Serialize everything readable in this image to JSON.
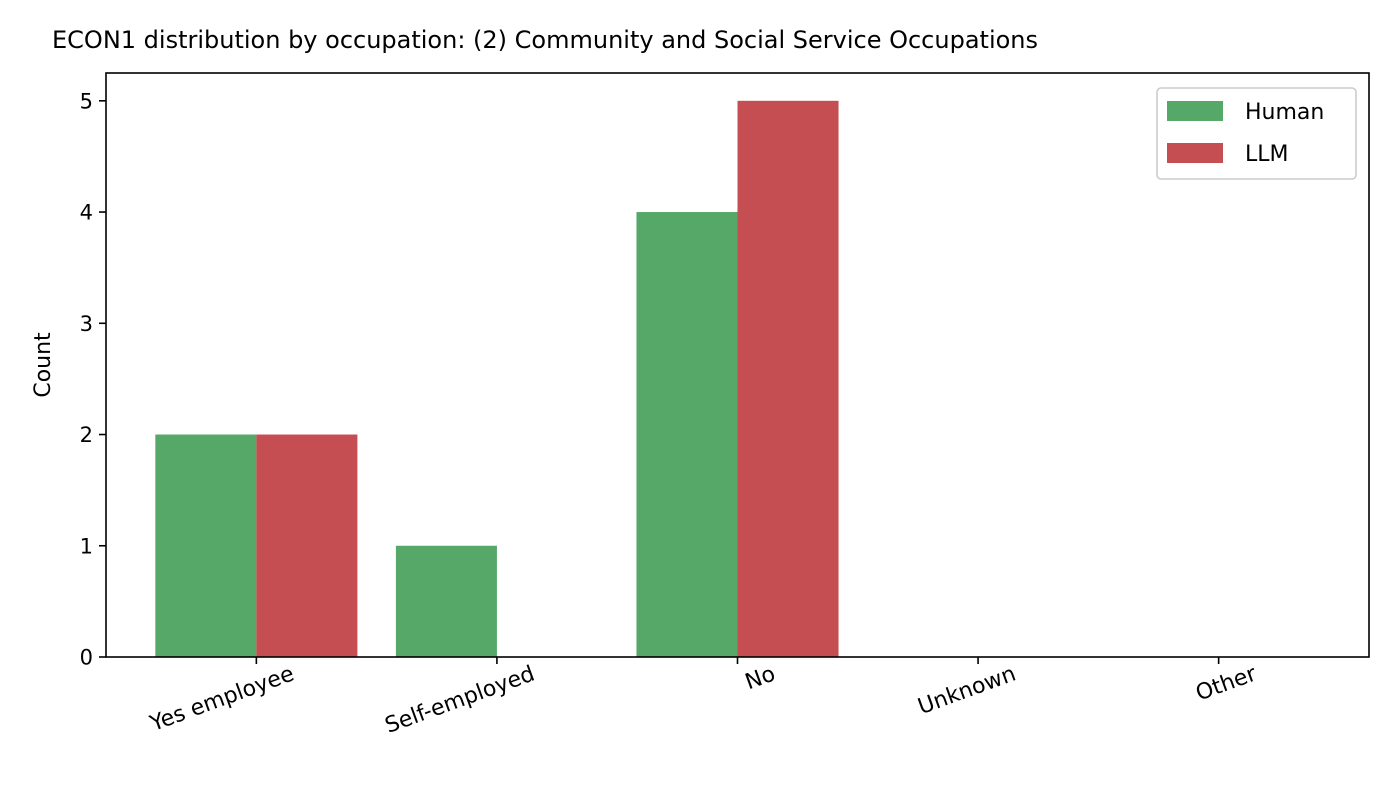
{
  "chart_data": {
    "type": "bar",
    "title": "ECON1 distribution by occupation: (2) Community and Social Service Occupations",
    "xlabel": "",
    "ylabel": "Count",
    "categories": [
      "Yes employee",
      "Self-employed",
      "No",
      "Unknown",
      "Other"
    ],
    "series": [
      {
        "name": "Human",
        "color": "#55a868",
        "values": [
          2,
          1,
          4,
          0,
          0
        ]
      },
      {
        "name": "LLM",
        "color": "#c44e52",
        "values": [
          2,
          0,
          5,
          0,
          0
        ]
      }
    ],
    "ylim": [
      0,
      5.25
    ],
    "yticks": [
      0,
      1,
      2,
      3,
      4,
      5
    ],
    "grid": false,
    "legend": "top-right"
  }
}
